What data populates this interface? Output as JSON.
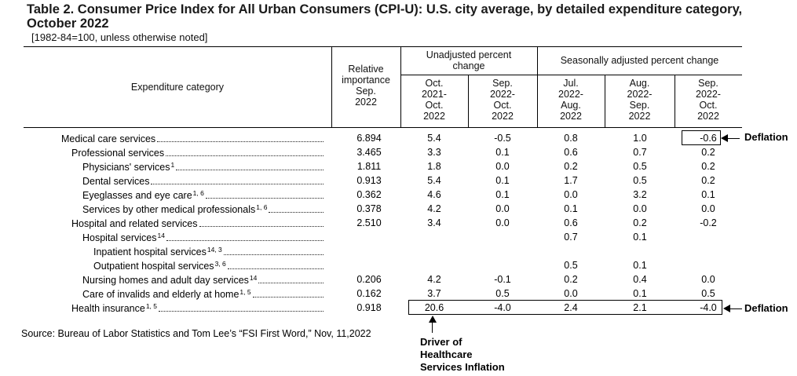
{
  "title": "Table 2. Consumer Price Index for All Urban Consumers (CPI-U): U.S. city average, by detailed expenditure category, October 2022",
  "subtitle": "[1982-84=100, unless otherwise noted]",
  "headers": {
    "category": "Expenditure category",
    "relative": [
      "Relative",
      "importance",
      "Sep.",
      "2022"
    ],
    "unadjusted_group": [
      "Unadjusted percent",
      "change"
    ],
    "seasonal_group": "Seasonally adjusted percent change",
    "columns": [
      [
        "Oct.",
        "2021-",
        "Oct.",
        "2022"
      ],
      [
        "Sep.",
        "2022-",
        "Oct.",
        "2022"
      ],
      [
        "Jul.",
        "2022-",
        "Aug.",
        "2022"
      ],
      [
        "Aug.",
        "2022-",
        "Sep.",
        "2022"
      ],
      [
        "Sep.",
        "2022-",
        "Oct.",
        "2022"
      ]
    ]
  },
  "rows": [
    {
      "label": "Medical care services",
      "sup": "",
      "values": [
        "6.894",
        "5.4",
        "-0.5",
        "0.8",
        "1.0",
        "-0.6"
      ]
    },
    {
      "label": "Professional services",
      "sup": "",
      "values": [
        "3.465",
        "3.3",
        "0.1",
        "0.6",
        "0.7",
        "0.2"
      ]
    },
    {
      "label": "Physicians' services",
      "sup": "1",
      "values": [
        "1.811",
        "1.8",
        "0.0",
        "0.2",
        "0.5",
        "0.2"
      ]
    },
    {
      "label": "Dental services",
      "sup": "",
      "values": [
        "0.913",
        "5.4",
        "0.1",
        "1.7",
        "0.5",
        "0.2"
      ]
    },
    {
      "label": "Eyeglasses and eye care",
      "sup": "1, 6",
      "values": [
        "0.362",
        "4.6",
        "0.1",
        "0.0",
        "3.2",
        "0.1"
      ]
    },
    {
      "label": "Services by other medical professionals",
      "sup": "1, 6",
      "values": [
        "0.378",
        "4.2",
        "0.0",
        "0.1",
        "0.0",
        "0.0"
      ]
    },
    {
      "label": "Hospital and related services",
      "sup": "",
      "values": [
        "2.510",
        "3.4",
        "0.0",
        "0.6",
        "0.2",
        "-0.2"
      ]
    },
    {
      "label": "Hospital services",
      "sup": "14",
      "values": [
        "",
        "",
        "",
        "0.7",
        "0.1",
        ""
      ]
    },
    {
      "label": "Inpatient hospital services",
      "sup": "14, 3",
      "values": [
        "",
        "",
        "",
        "",
        "",
        ""
      ]
    },
    {
      "label": "Outpatient hospital services",
      "sup": "3, 6",
      "values": [
        "",
        "",
        "",
        "0.5",
        "0.1",
        ""
      ]
    },
    {
      "label": "Nursing homes and adult day services",
      "sup": "14",
      "values": [
        "0.206",
        "4.2",
        "-0.1",
        "0.2",
        "0.4",
        "0.0"
      ]
    },
    {
      "label": "Care of invalids and elderly at home",
      "sup": "1, 5",
      "values": [
        "0.162",
        "3.7",
        "0.5",
        "0.0",
        "0.1",
        "0.5"
      ]
    },
    {
      "label": "Health insurance",
      "sup": "1, 5",
      "values": [
        "0.918",
        "20.6",
        "-4.0",
        "2.4",
        "2.1",
        "-4.0"
      ]
    }
  ],
  "annotations": {
    "deflation_1": "Deflation",
    "deflation_2": "Deflation",
    "driver": [
      "Driver of",
      "Healthcare",
      "Services Inflation"
    ],
    "source": "Source: Bureau of Labor Statistics and Tom Lee’s “FSI First Word,” Nov, 11,2022"
  }
}
